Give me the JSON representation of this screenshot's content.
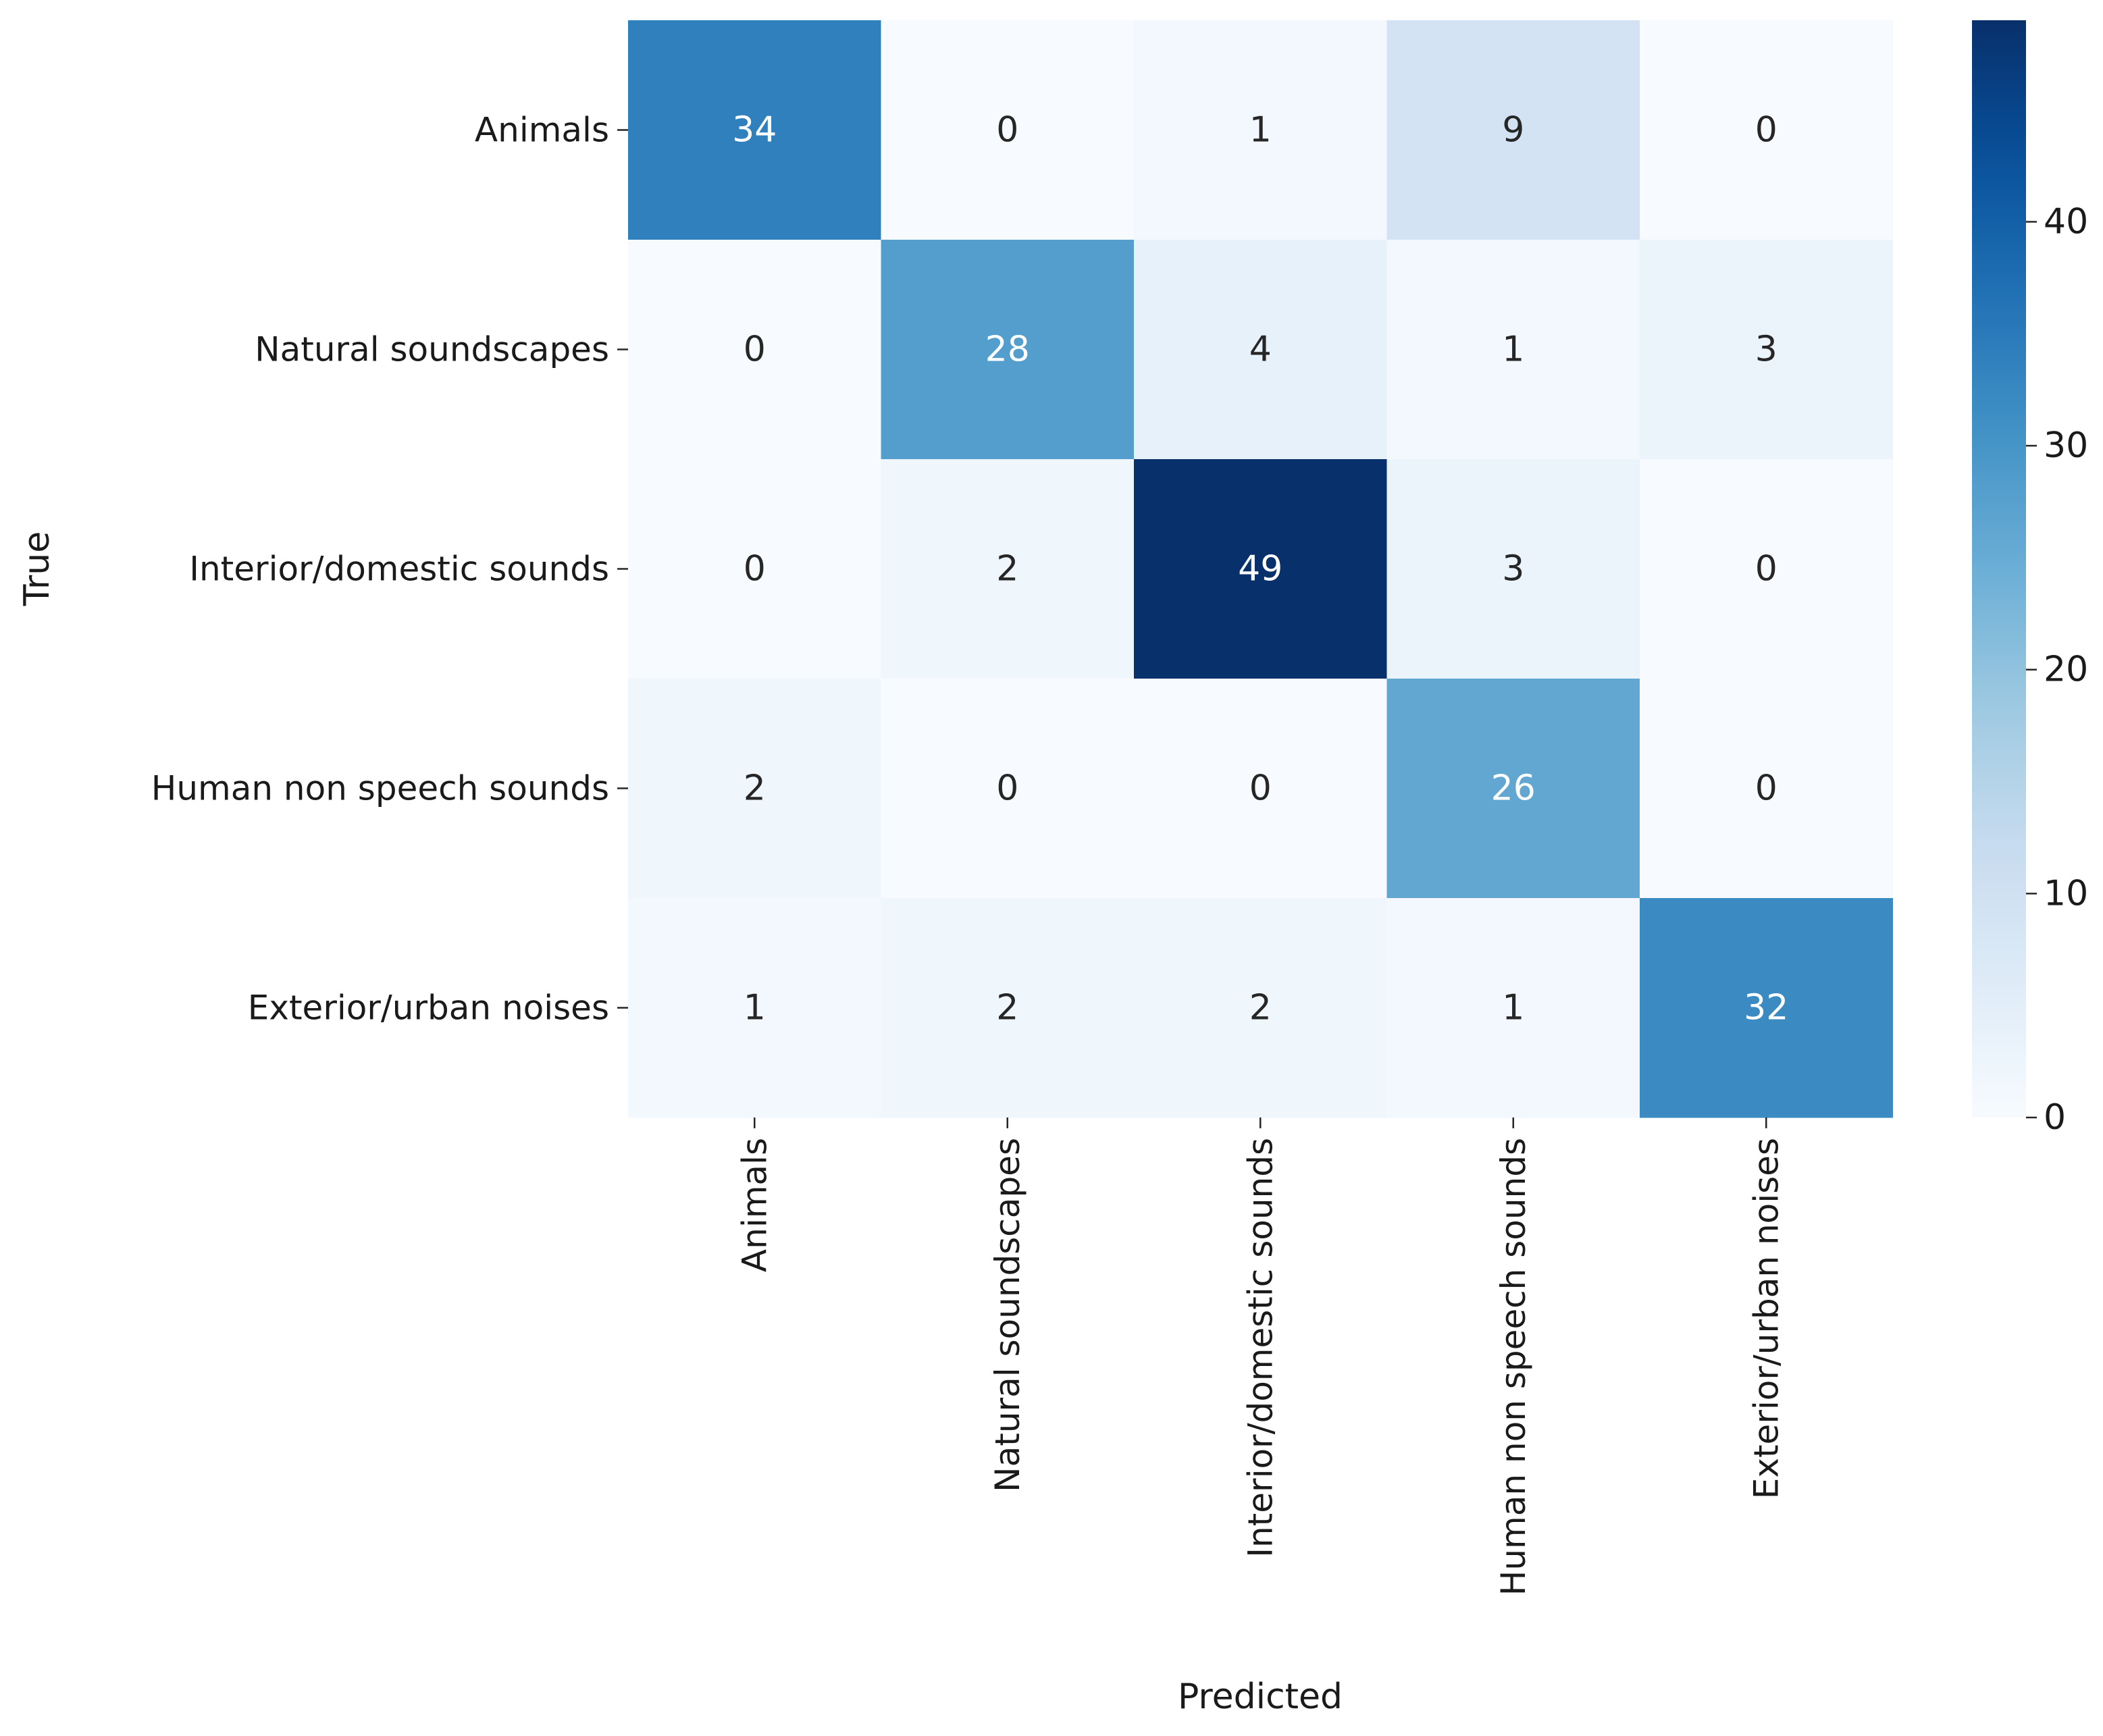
{
  "chart_data": {
    "type": "heatmap",
    "title": "",
    "xlabel": "Predicted",
    "ylabel": "True",
    "x_categories": [
      "Animals",
      "Natural soundscapes",
      "Interior/domestic sounds",
      "Human non speech sounds",
      "Exterior/urban noises"
    ],
    "y_categories": [
      "Animals",
      "Natural soundscapes",
      "Interior/domestic sounds",
      "Human non speech sounds",
      "Exterior/urban noises"
    ],
    "values": [
      [
        34,
        0,
        1,
        9,
        0
      ],
      [
        0,
        28,
        4,
        1,
        3
      ],
      [
        0,
        2,
        49,
        3,
        0
      ],
      [
        2,
        0,
        0,
        26,
        0
      ],
      [
        1,
        2,
        2,
        1,
        32
      ]
    ],
    "colormap": "Blues",
    "vmin": 0,
    "vmax": 49,
    "colorbar_ticks": [
      "0",
      "10",
      "20",
      "30",
      "40"
    ],
    "annotated": true,
    "grid": false
  }
}
